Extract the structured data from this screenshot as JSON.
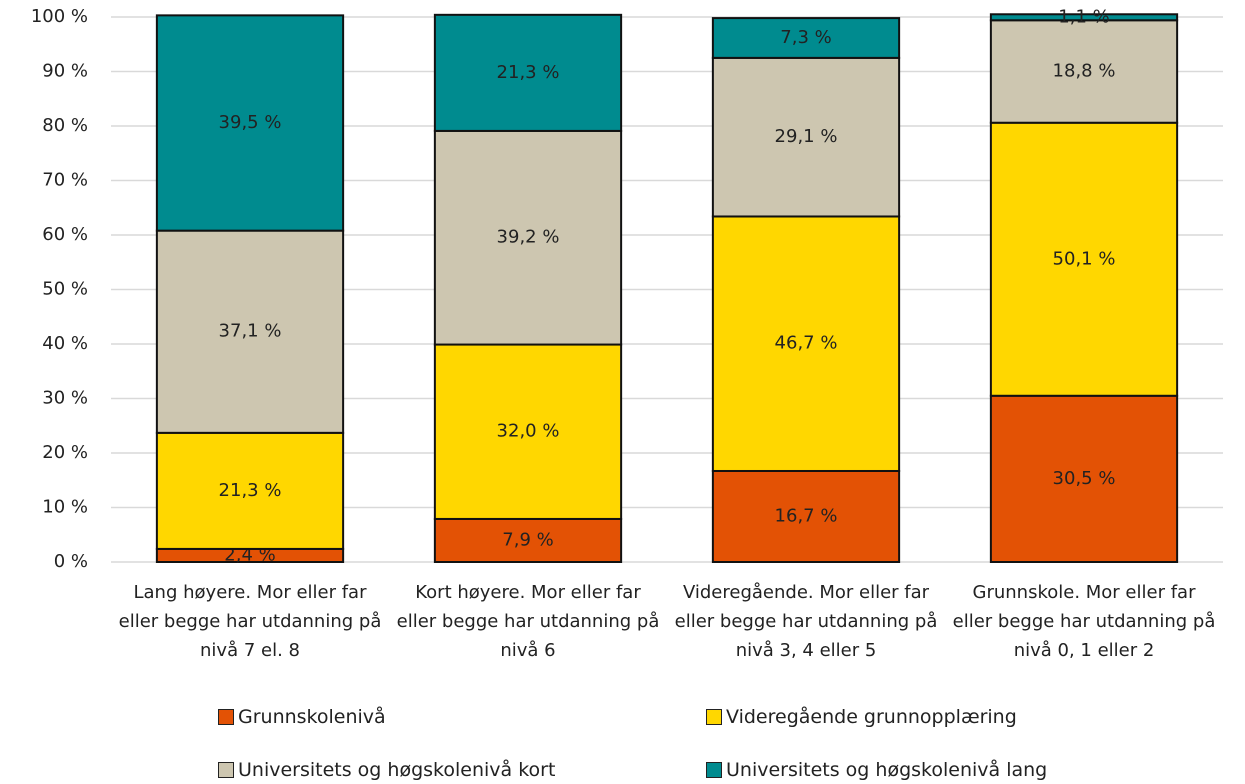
{
  "chart_data": {
    "type": "stacked_bar",
    "categories": [
      "Lang høyere. Mor eller far eller begge har utdanning på nivå 7 el. 8",
      "Kort høyere. Mor eller far eller begge har utdanning på nivå 6",
      "Videregående. Mor eller far eller begge har utdanning på nivå 3, 4 eller 5",
      "Grunnskole. Mor eller far eller begge har utdanning på nivå 0, 1 eller 2"
    ],
    "series": [
      {
        "name": "Grunnskolenivå",
        "color": "#e35205",
        "values": [
          2.4,
          7.9,
          16.7,
          30.5
        ],
        "value_labels": [
          "2,4 %",
          "7,9 %",
          "16,7 %",
          "30,5 %"
        ]
      },
      {
        "name": "Videregående grunnopplæring",
        "color": "#ffd700",
        "values": [
          21.3,
          32.0,
          46.7,
          50.1
        ],
        "value_labels": [
          "21,3 %",
          "32,0 %",
          "46,7 %",
          "50,1 %"
        ]
      },
      {
        "name": "Universitets og høgskolenivå kort",
        "color": "#cdc6b0",
        "values": [
          37.1,
          39.2,
          29.1,
          18.8
        ],
        "value_labels": [
          "37,1 %",
          "39,2 %",
          "29,1 %",
          "18,8 %"
        ]
      },
      {
        "name": "Universitets og høgskolenivå lang",
        "color": "#008b8f",
        "values": [
          39.5,
          21.3,
          7.3,
          1.1
        ],
        "value_labels": [
          "39,5 %",
          "21,3 %",
          "7,3 %",
          "1,1 %"
        ]
      }
    ],
    "ylim": [
      0,
      100
    ],
    "yticks": [
      {
        "value": 0,
        "label": "0 %"
      },
      {
        "value": 10,
        "label": "10 %"
      },
      {
        "value": 20,
        "label": "20 %"
      },
      {
        "value": 30,
        "label": "30 %"
      },
      {
        "value": 40,
        "label": "40 %"
      },
      {
        "value": 50,
        "label": "50 %"
      },
      {
        "value": 60,
        "label": "60 %"
      },
      {
        "value": 70,
        "label": "70 %"
      },
      {
        "value": 80,
        "label": "80 %"
      },
      {
        "value": 90,
        "label": "90 %"
      },
      {
        "value": 100,
        "label": "100 %"
      }
    ],
    "grid": true
  }
}
